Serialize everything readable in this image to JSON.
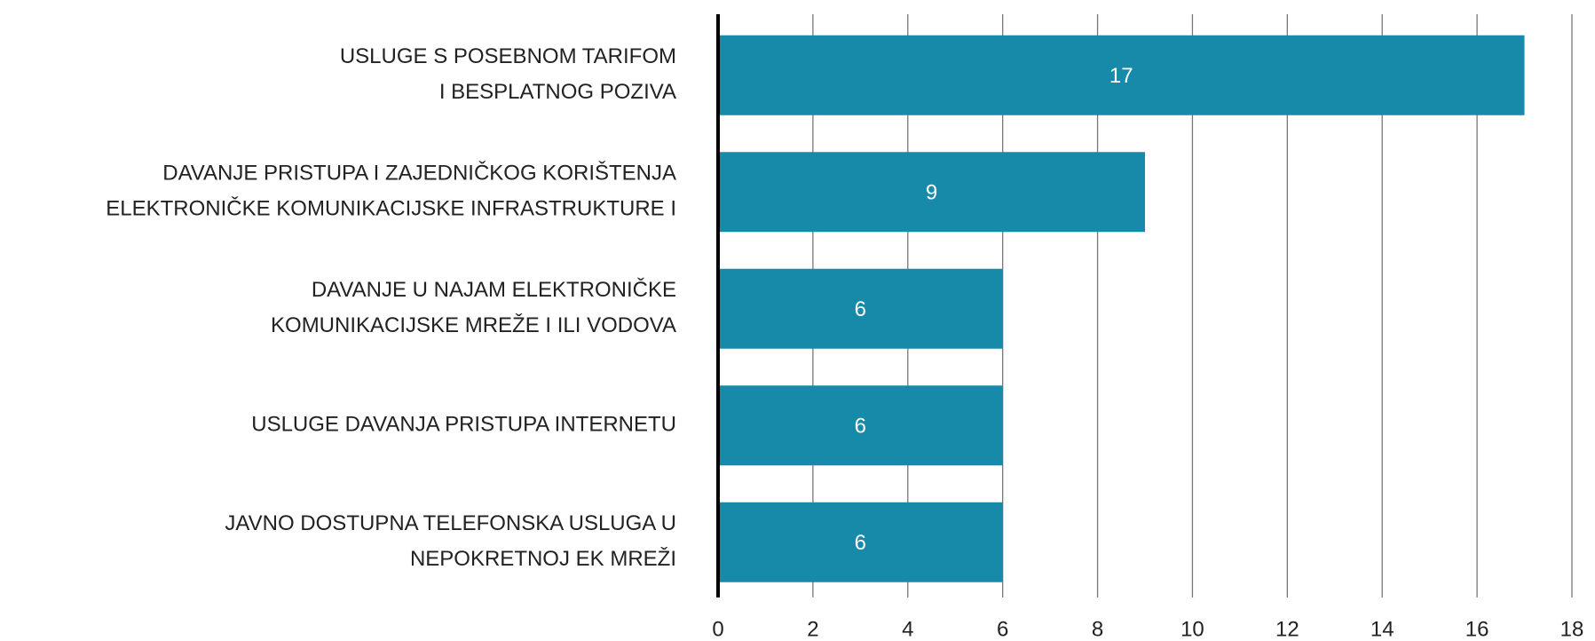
{
  "chart_data": {
    "type": "bar",
    "orientation": "horizontal",
    "categories": [
      [
        "USLUGE S POSEBNOM TARIFOM",
        "I BESPLATNOG POZIVA"
      ],
      [
        "DAVANJE PRISTUPA I ZAJEDNIČKOG KORIŠTENJA",
        "ELEKTRONIČKE KOMUNIKACIJSKE INFRASTRUKTURE I"
      ],
      [
        "DAVANJE U NAJAM ELEKTRONIČKE",
        "KOMUNIKACIJSKE MREŽE I ILI VODOVA"
      ],
      [
        "USLUGE DAVANJA PRISTUPA INTERNETU"
      ],
      [
        "JAVNO DOSTUPNA TELEFONSKA USLUGA U",
        "NEPOKRETNOJ EK MREŽI"
      ]
    ],
    "values": [
      17,
      9,
      6,
      6,
      6
    ],
    "color": "#168aa8",
    "xlim": [
      0,
      18
    ],
    "xticks": [
      0,
      2,
      4,
      6,
      8,
      10,
      12,
      14,
      16,
      18
    ],
    "grid": true
  }
}
